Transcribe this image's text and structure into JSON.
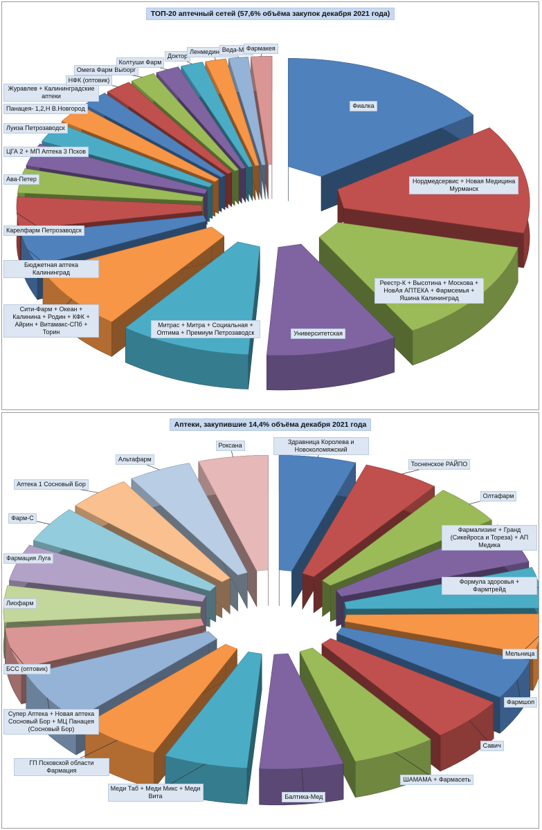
{
  "chart_data": [
    {
      "type": "pie",
      "title": "ТОП-20 аптечный сетей (57,6% объёма закупок декабря 2021 года)",
      "exploded": true,
      "three_d": true,
      "categories": [
        "Фиалка",
        "Нордмедсервис + Новая Медицина Мурманск",
        "Реестр-К + Высотина + Москова + НовАя АПТЕКА + Фармсемья + Яшина Калининград",
        "Университетская",
        "Митрас + Митра + Социальная + Оптима + Премиум Петрозаводск",
        "Сити-Фарм + Океан + Калинина + Родин + КФК + Айрин + Витамакс-СПб + Торин",
        "Бюджетная аптека Калининград",
        "Карелфарм Петрозаводск",
        "Ава-Петер",
        "ЦГА 2 + МП Аптека 3 Псков",
        "Луиза Петрозаводск",
        "Панацея- 1,2,Н В.Новгород",
        "Журавлев + Калининградские аптеки",
        "НФК (оптовик)",
        "Омега Фарм Выборг",
        "Колтуши Фарм",
        "Доктор",
        "Ленмединформ",
        "Веда-Мед",
        "Фармакея"
      ],
      "values": [
        15.5,
        13.5,
        13.0,
        9.5,
        9.5,
        8.0,
        4.0,
        4.0,
        3.0,
        2.8,
        2.5,
        2.3,
        2.0,
        1.9,
        1.8,
        1.7,
        1.6,
        1.5,
        1.4,
        1.5
      ],
      "colors": [
        "#4f81bd",
        "#c0504d",
        "#9bbb59",
        "#8064a2",
        "#4bacc6",
        "#f79646",
        "#4f81bd",
        "#c0504d",
        "#9bbb59",
        "#8064a2",
        "#4bacc6",
        "#f79646",
        "#4f81bd",
        "#c0504d",
        "#9bbb59",
        "#8064a2",
        "#4bacc6",
        "#f79646",
        "#95b3d7",
        "#da9694"
      ]
    },
    {
      "type": "pie",
      "title": "Аптеки, закупившие 14,4% объёма декабря 2021 года",
      "exploded": true,
      "three_d": true,
      "categories": [
        "Здравница Королева и Новоколомяжский",
        "Тосненское РАЙПО",
        "Олтафарм",
        "Фармализинг + Гранд (Сикейроса и Тореза) + АП Медика",
        "Формула здоровья + Фармтрейд",
        "Мельница",
        "Фармшоп",
        "Савич",
        "ШАМАМА + Фармасеть",
        "Балтика-Мед",
        "Меди Таб + Меди Микс + Меди Вита",
        "ГП Псковской области Фармация",
        "Супер Аптека + Новая аптека Сосновый Бор + МЦ Панацея (Сосновый Бор)",
        "БСС (оптовик)",
        "Лиофарм",
        "Фармация Луга",
        "Фарм-С",
        "Аптека 1 Сосновый Бор",
        "Альтафарм",
        "Роксана"
      ],
      "values": [
        5.5,
        5.5,
        5.0,
        5.0,
        5.0,
        5.0,
        5.0,
        5.5,
        6.0,
        6.0,
        6.0,
        6.0,
        6.5,
        5.0,
        4.5,
        4.5,
        4.5,
        4.5,
        4.5,
        5.0
      ],
      "colors": [
        "#4f81bd",
        "#c0504d",
        "#9bbb59",
        "#8064a2",
        "#4bacc6",
        "#f79646",
        "#4f81bd",
        "#c0504d",
        "#9bbb59",
        "#8064a2",
        "#4bacc6",
        "#f79646",
        "#95b3d7",
        "#da9694",
        "#c3d69b",
        "#b3a2c7",
        "#93cddd",
        "#fac08f",
        "#b9cde5",
        "#e6b9b8"
      ]
    }
  ]
}
